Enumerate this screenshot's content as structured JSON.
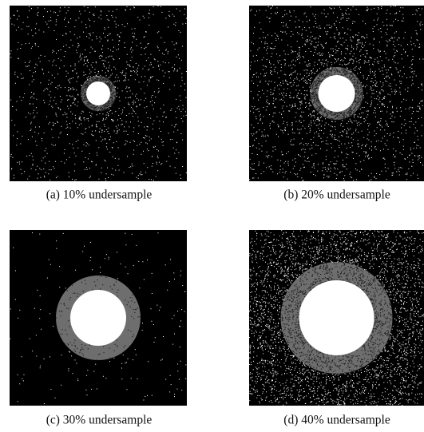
{
  "figure": {
    "panels": [
      {
        "caption": "(a)  10% undersample"
      },
      {
        "caption": "(b)  20% undersample"
      },
      {
        "caption": "(c)  30% undersample"
      },
      {
        "caption": "(d)  40% undersample"
      }
    ]
  }
}
